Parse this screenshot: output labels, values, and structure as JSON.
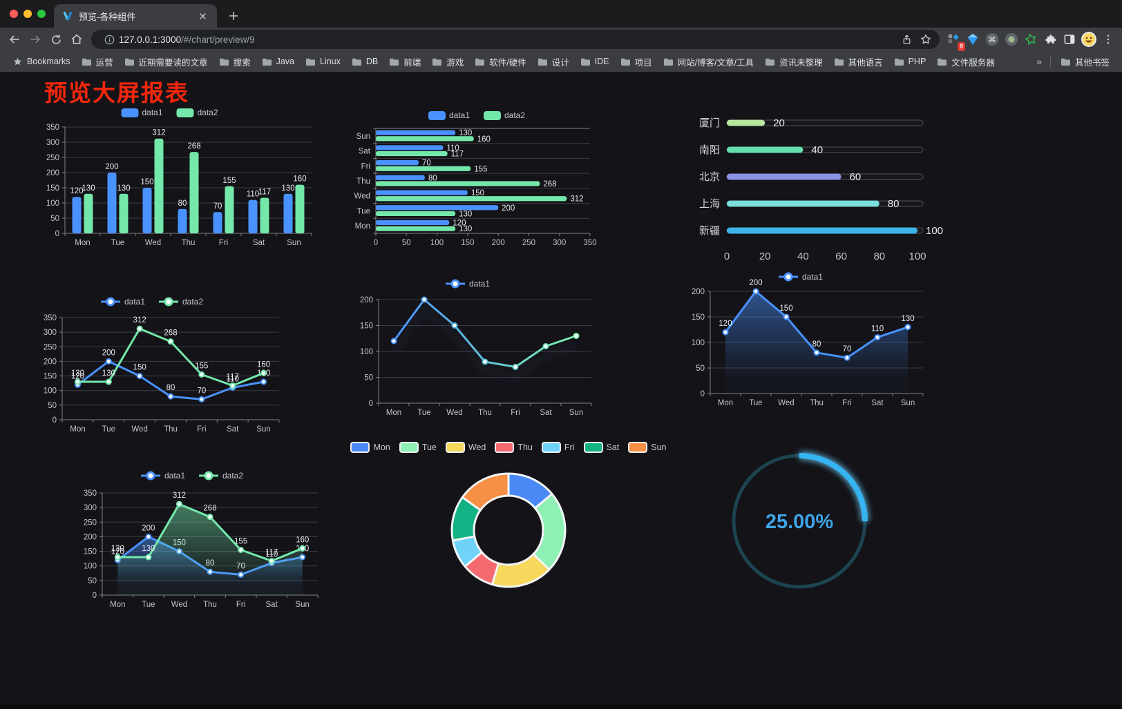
{
  "browser": {
    "tab_title": "预览-各种组件",
    "url_host": "127.0.0.1:3000",
    "url_path": "/#/chart/preview/9",
    "extension_badge": "9",
    "bookmarks_label": "Bookmarks",
    "bookmarks": [
      "运营",
      "近期需要读的文章",
      "搜索",
      "Java",
      "Linux",
      "DB",
      "前端",
      "游戏",
      "软件/硬件",
      "设计",
      "IDE",
      "项目",
      "网站/博客/文章/工具",
      "资讯未整理",
      "其他语言",
      "PHP",
      "文件服务器"
    ],
    "bookmarks_overflow": "»",
    "other_bookmarks": "其他书签"
  },
  "page": {
    "title": "预览大屏报表",
    "title_color": "#f4270c",
    "background": "#131318"
  },
  "chart_data": [
    {
      "id": "bar-vertical",
      "type": "bar",
      "categories": [
        "Mon",
        "Tue",
        "Wed",
        "Thu",
        "Fri",
        "Sat",
        "Sun"
      ],
      "series": [
        {
          "name": "data1",
          "color": "#4992ff",
          "values": [
            120,
            200,
            150,
            80,
            70,
            110,
            130
          ]
        },
        {
          "name": "data2",
          "color": "#74e8ab",
          "values": [
            130,
            130,
            312,
            268,
            155,
            117,
            160
          ]
        }
      ],
      "ylim": [
        0,
        350
      ],
      "yticks": [
        0,
        50,
        100,
        150,
        200,
        250,
        300,
        350
      ],
      "legend": [
        "data1",
        "data2"
      ],
      "legend_position": "top",
      "value_labels": true,
      "grid": true
    },
    {
      "id": "bar-horizontal",
      "type": "bar",
      "orientation": "horizontal",
      "categories": [
        "Mon",
        "Tue",
        "Wed",
        "Thu",
        "Fri",
        "Sat",
        "Sun"
      ],
      "series": [
        {
          "name": "data1",
          "color": "#4992ff",
          "values": [
            120,
            200,
            150,
            80,
            70,
            110,
            130
          ]
        },
        {
          "name": "data2",
          "color": "#74e8ab",
          "values": [
            130,
            130,
            312,
            268,
            155,
            117,
            160
          ]
        }
      ],
      "xlim": [
        0,
        350
      ],
      "xticks": [
        0,
        50,
        100,
        150,
        200,
        250,
        300,
        350
      ],
      "legend": [
        "data1",
        "data2"
      ],
      "legend_position": "top",
      "value_labels": true,
      "grid": true
    },
    {
      "id": "progress",
      "type": "bar",
      "subtype": "progress-capsules",
      "categories": [
        "厦门",
        "南阳",
        "北京",
        "上海",
        "新疆"
      ],
      "values": [
        20,
        40,
        60,
        80,
        100
      ],
      "colors": [
        "#b7e89e",
        "#65dfae",
        "#8b92e8",
        "#7adfdd",
        "#3cb4e7"
      ],
      "xlim": [
        0,
        100
      ],
      "xticks": [
        0,
        20,
        40,
        60,
        80,
        100
      ],
      "value_labels": true
    },
    {
      "id": "line-two",
      "type": "line",
      "categories": [
        "Mon",
        "Tue",
        "Wed",
        "Thu",
        "Fri",
        "Sat",
        "Sun"
      ],
      "series": [
        {
          "name": "data1",
          "color": "#4992ff",
          "values": [
            120,
            200,
            150,
            80,
            70,
            110,
            130
          ]
        },
        {
          "name": "data2",
          "color": "#74e8ab",
          "values": [
            130,
            130,
            312,
            268,
            155,
            117,
            160
          ]
        }
      ],
      "ylim": [
        0,
        350
      ],
      "yticks": [
        0,
        50,
        100,
        150,
        200,
        250,
        300,
        350
      ],
      "legend": [
        "data1",
        "data2"
      ],
      "legend_position": "top",
      "value_labels": true,
      "grid": true
    },
    {
      "id": "line-gradient",
      "type": "line",
      "categories": [
        "Mon",
        "Tue",
        "Wed",
        "Thu",
        "Fri",
        "Sat",
        "Sun"
      ],
      "series": [
        {
          "name": "data1",
          "color": "#4992ff",
          "gradient": [
            "#4992ff",
            "#7cf0b0"
          ],
          "shadow": true,
          "values": [
            120,
            200,
            150,
            80,
            70,
            110,
            130
          ]
        }
      ],
      "ylim": [
        0,
        200
      ],
      "yticks": [
        0,
        50,
        100,
        150,
        200
      ],
      "legend": [
        "data1"
      ],
      "legend_position": "top",
      "value_labels": false,
      "grid": true
    },
    {
      "id": "area-single",
      "type": "area",
      "categories": [
        "Mon",
        "Tue",
        "Wed",
        "Thu",
        "Fri",
        "Sat",
        "Sun"
      ],
      "series": [
        {
          "name": "data1",
          "color": "#4992ff",
          "area": true,
          "values": [
            120,
            200,
            150,
            80,
            70,
            110,
            130
          ]
        }
      ],
      "ylim": [
        0,
        200
      ],
      "yticks": [
        0,
        50,
        100,
        150,
        200
      ],
      "legend": [
        "data1"
      ],
      "legend_position": "top",
      "value_labels": true,
      "grid": true
    },
    {
      "id": "area-two",
      "type": "area",
      "categories": [
        "Mon",
        "Tue",
        "Wed",
        "Thu",
        "Fri",
        "Sat",
        "Sun"
      ],
      "series": [
        {
          "name": "data1",
          "color": "#4992ff",
          "area": true,
          "values": [
            120,
            200,
            150,
            80,
            70,
            110,
            130
          ]
        },
        {
          "name": "data2",
          "color": "#74e8ab",
          "area": true,
          "values": [
            130,
            130,
            312,
            268,
            155,
            117,
            160
          ]
        }
      ],
      "ylim": [
        0,
        350
      ],
      "yticks": [
        0,
        50,
        100,
        150,
        200,
        250,
        300,
        350
      ],
      "legend": [
        "data1",
        "data2"
      ],
      "legend_position": "top",
      "value_labels": true,
      "grid": true
    },
    {
      "id": "donut",
      "type": "pie",
      "inner_radius": true,
      "categories": [
        "Mon",
        "Tue",
        "Wed",
        "Thu",
        "Fri",
        "Sat",
        "Sun"
      ],
      "values": [
        120,
        200,
        150,
        80,
        70,
        110,
        130
      ],
      "colors": [
        "#4a89f5",
        "#8ff0b4",
        "#f5d85c",
        "#f56a6f",
        "#6ed3f7",
        "#12b284",
        "#f79044"
      ],
      "legend_position": "top"
    },
    {
      "id": "gauge",
      "type": "gauge",
      "value": 25,
      "label": "25.00%",
      "color": "#36b4f1",
      "track_color": "#1c4550",
      "text_color": "#3fa5e8"
    }
  ]
}
